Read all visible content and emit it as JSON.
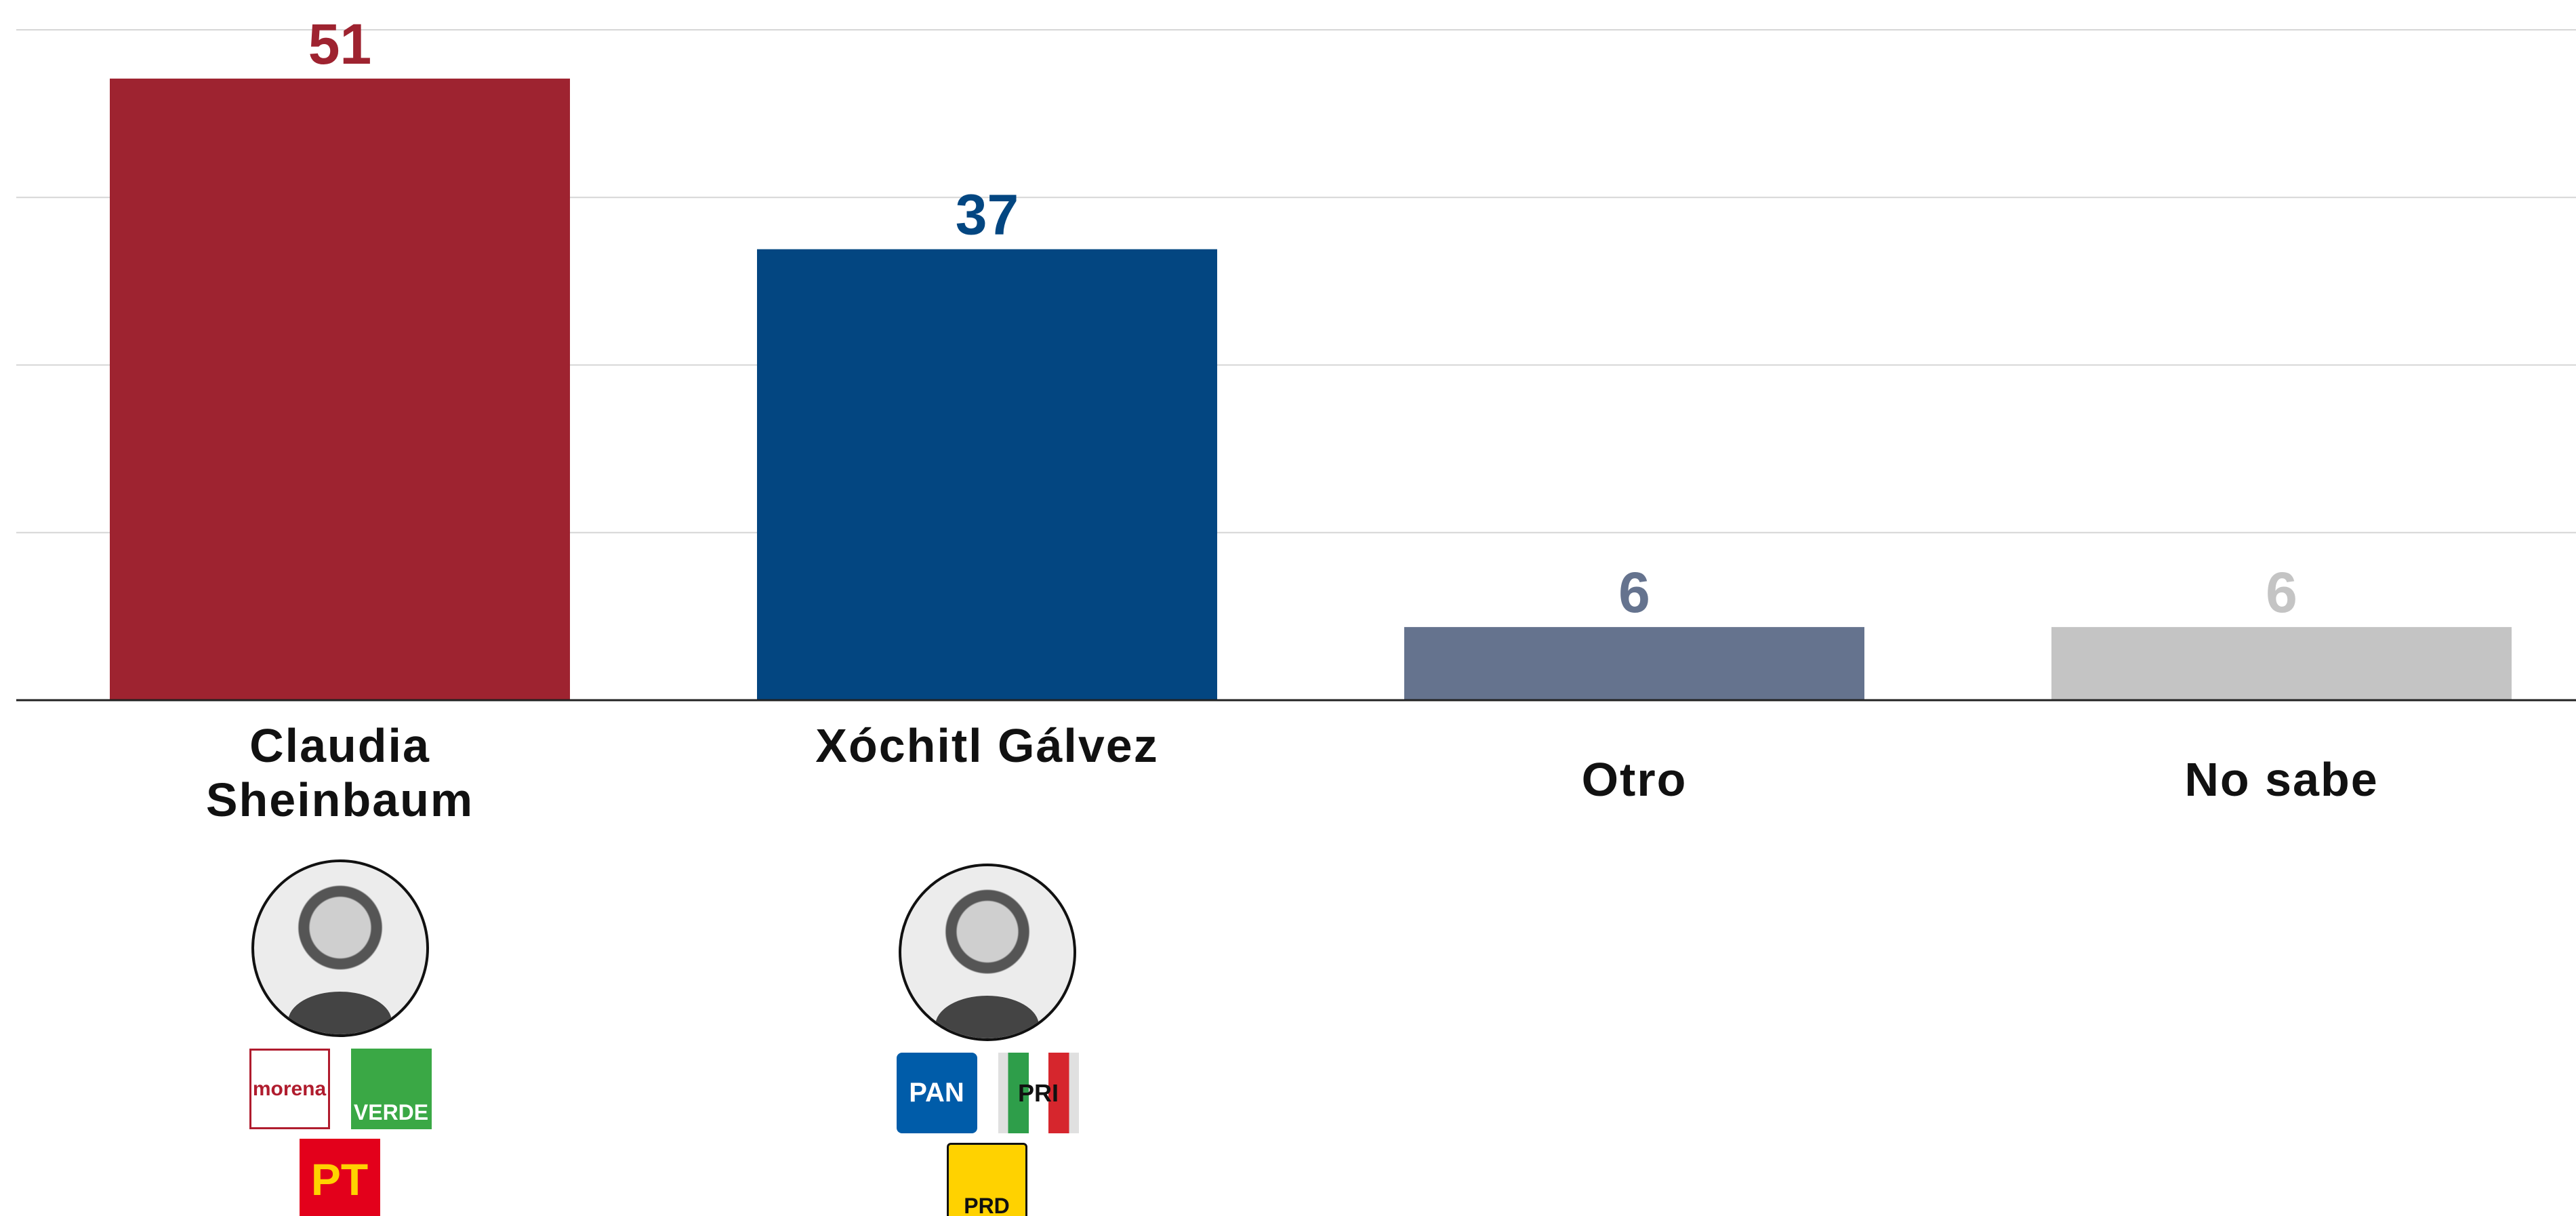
{
  "chart_data": {
    "type": "bar",
    "categories": [
      "Claudia Sheinbaum",
      "Xóchitl Gálvez",
      "Otro",
      "No sabe"
    ],
    "values": [
      51,
      37,
      6,
      6
    ],
    "colors": [
      "#9e2330",
      "#034681",
      "#65738e",
      "#c4c4c4"
    ],
    "ylim": [
      0,
      55
    ],
    "yticks": [
      0,
      13.75,
      27.5,
      41.25,
      55
    ],
    "grid": true,
    "logos": [
      [
        "morena",
        "VERDE",
        "PT"
      ],
      [
        "PAN",
        "PRI",
        "PRD"
      ]
    ]
  }
}
